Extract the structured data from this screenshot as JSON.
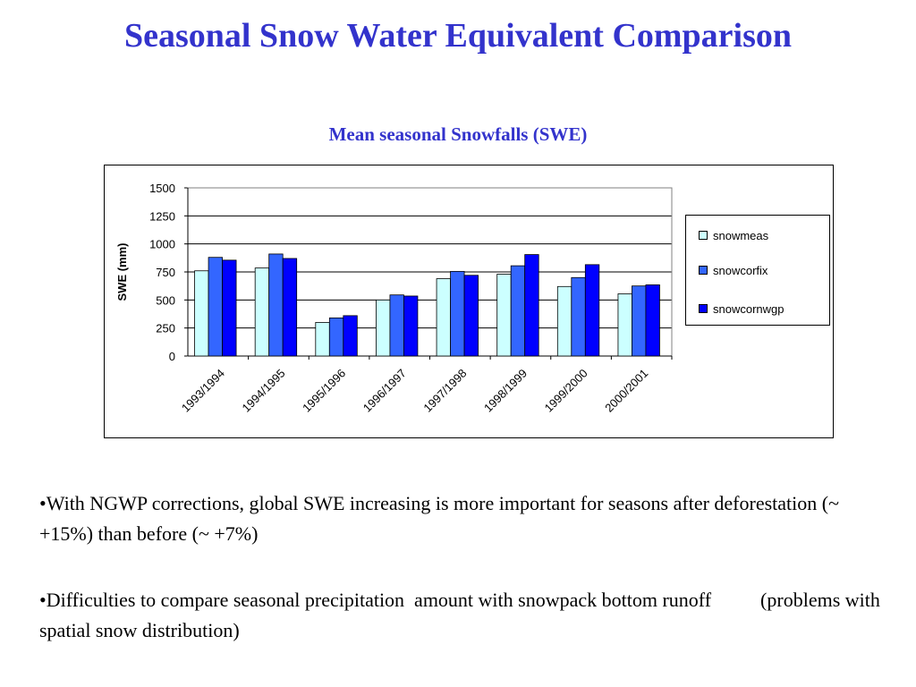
{
  "slide": {
    "title": "Seasonal Snow Water Equivalent Comparison",
    "bullets": [
      "•With NGWP corrections, global SWE increasing is more important for seasons after deforestation (~ +15%) than before (~ +7%)",
      "•Difficulties to compare seasonal precipitation  amount with snowpack bottom runoff          (problems with spatial snow distribution)"
    ]
  },
  "chart_data": {
    "type": "bar",
    "title": "Mean seasonal Snowfalls (SWE)",
    "xlabel": "",
    "ylabel": "SWE (mm)",
    "ylim": [
      0,
      1500
    ],
    "yticks": [
      "0",
      "250",
      "500",
      "750",
      "1000",
      "1250",
      "1500"
    ],
    "grid": true,
    "legend_position": "right",
    "categories": [
      "1993/1994",
      "1994/1995",
      "1995/1996",
      "1996/1997",
      "1997/1998",
      "1998/1999",
      "1999/2000",
      "2000/2001"
    ],
    "series": [
      {
        "name": "snowmeas",
        "color": "#ccffff",
        "values": [
          760,
          785,
          300,
          500,
          690,
          730,
          620,
          555
        ]
      },
      {
        "name": "snowcorfix",
        "color": "#3366ff",
        "values": [
          880,
          910,
          340,
          545,
          755,
          805,
          700,
          625
        ]
      },
      {
        "name": "snowcornwgp",
        "color": "#0000ff",
        "values": [
          855,
          870,
          360,
          535,
          720,
          905,
          815,
          635
        ]
      }
    ]
  }
}
